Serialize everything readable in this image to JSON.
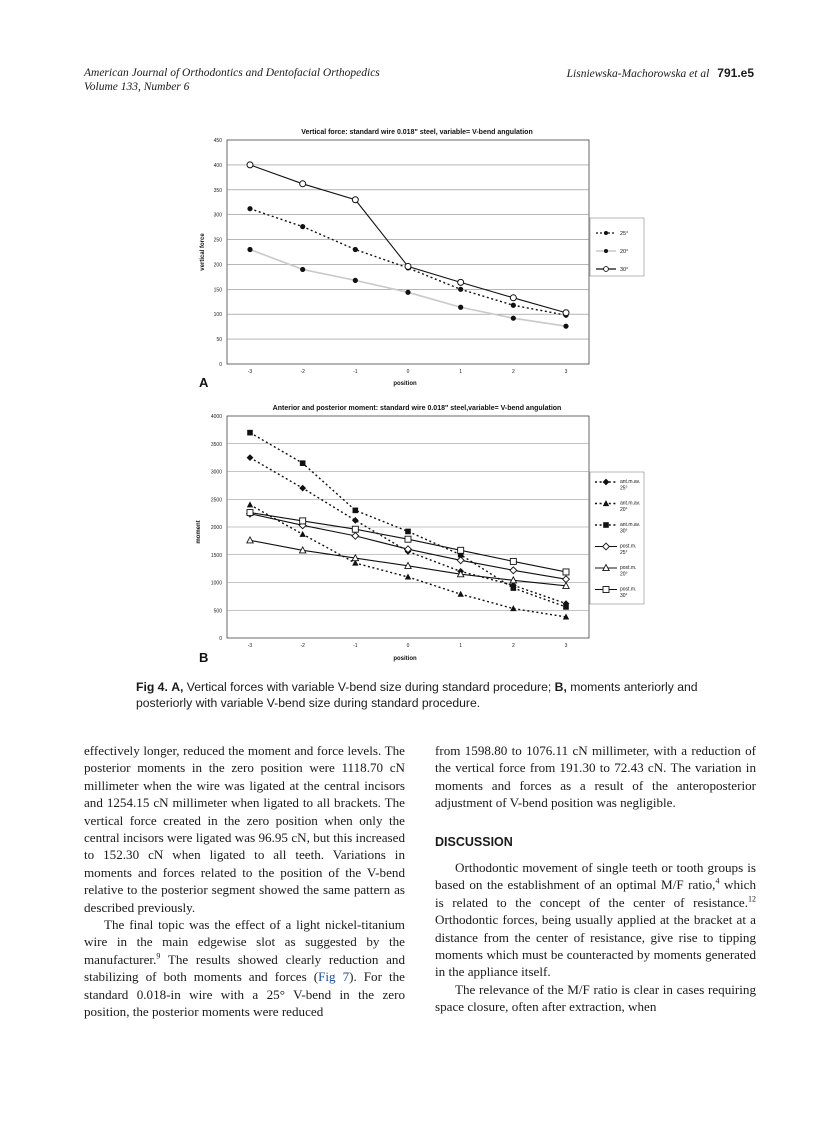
{
  "header": {
    "journal_line1": "American Journal of Orthodontics and Dentofacial Orthopedics",
    "journal_line2": "Volume 133, Number 6",
    "authors": "Lisniewska-Machorowska et al",
    "page_number": "791.e5"
  },
  "chart_data": [
    {
      "type": "line",
      "panel_label": "A",
      "title": "Vertical force: standard wire 0.018\" steel, variable= V-bend angulation",
      "xlabel": "position",
      "ylabel": "vertical force",
      "x": [
        -3,
        -2,
        -1,
        0,
        1,
        2,
        3
      ],
      "ylim": [
        0,
        450
      ],
      "yticks": [
        0,
        50,
        100,
        150,
        200,
        250,
        300,
        350,
        400,
        450
      ],
      "series": [
        {
          "name": "25°",
          "style": "dotted",
          "marker": "dot",
          "values": [
            312,
            276,
            230,
            193,
            150,
            118,
            98
          ]
        },
        {
          "name": "20°",
          "style": "light",
          "marker": "dot",
          "values": [
            230,
            190,
            168,
            144,
            114,
            92,
            76
          ]
        },
        {
          "name": "30°",
          "style": "solid",
          "marker": "circle",
          "values": [
            400,
            362,
            330,
            196,
            164,
            133,
            103
          ]
        }
      ]
    },
    {
      "type": "line",
      "panel_label": "B",
      "title": "Anterior and posterior moment: standard wire 0.018\" steel,variable= V-bend angulation",
      "xlabel": "position",
      "ylabel": "moment",
      "x": [
        -3,
        -2,
        -1,
        0,
        1,
        2,
        3
      ],
      "ylim": [
        0,
        4000
      ],
      "yticks": [
        0,
        500,
        1000,
        1500,
        2000,
        2500,
        3000,
        3500,
        4000
      ],
      "series": [
        {
          "name": "ant.m.av. 25°",
          "style": "dotted",
          "marker": "diamond",
          "values": [
            3250,
            2700,
            2120,
            1560,
            1200,
            950,
            620
          ]
        },
        {
          "name": "ant.m.av. 20°",
          "style": "dotted",
          "marker": "triangle",
          "values": [
            2400,
            1870,
            1350,
            1100,
            790,
            530,
            380
          ]
        },
        {
          "name": "ant.m.av. 30°",
          "style": "dotted",
          "marker": "square",
          "values": [
            3700,
            3150,
            2300,
            1920,
            1500,
            900,
            560
          ]
        },
        {
          "name": "post.m. 25°",
          "style": "solid",
          "marker": "open-diamond",
          "values": [
            2240,
            2030,
            1840,
            1600,
            1400,
            1220,
            1060
          ]
        },
        {
          "name": "post.m. 20°",
          "style": "solid",
          "marker": "open-triangle",
          "values": [
            1760,
            1580,
            1440,
            1300,
            1150,
            1040,
            940
          ]
        },
        {
          "name": "post.m. 30°",
          "style": "solid",
          "marker": "open-square",
          "values": [
            2260,
            2110,
            1960,
            1780,
            1580,
            1380,
            1190
          ]
        }
      ]
    }
  ],
  "legend_a": [
    "25°",
    "20°",
    "30°"
  ],
  "legend_b": [
    [
      "ant.m.av.",
      "25°"
    ],
    [
      "ant.m.av.",
      "20°"
    ],
    [
      "ant.m.av.",
      "30°"
    ],
    [
      "post.m.",
      "25°"
    ],
    [
      "post.m.",
      "20°"
    ],
    [
      "post.m.",
      "30°"
    ]
  ],
  "caption": {
    "label": "Fig 4.",
    "a_label": "A,",
    "a_text": " Vertical forces with variable V-bend size during standard procedure; ",
    "b_label": "B,",
    "b_text": " moments anteriorly and posteriorly with variable V-bend size during standard procedure."
  },
  "body": {
    "left_p1": "effectively longer, reduced the moment and force levels. The posterior moments in the zero position were 1118.70 cN millimeter when the wire was ligated at the central incisors and 1254.15 cN millimeter when ligated to all brackets. The vertical force created in the zero position when only the central incisors were ligated was 96.95 cN, but this increased to 152.30 cN when ligated to all teeth. Variations in moments and forces related to the position of the V-bend relative to the posterior segment showed the same pattern as described previously.",
    "left_p2_a": "The final topic was the effect of a light nickel-titanium wire in the main edgewise slot as suggested by the manufacturer.",
    "left_p2_ref": "9",
    "left_p2_b": " The results showed clearly reduction and stabilizing of both moments and forces (",
    "left_p2_fig": "Fig 7",
    "left_p2_c": "). For the standard 0.018-in wire with a 25° V-bend in the zero position, the posterior moments were reduced",
    "right_p1": "from 1598.80 to 1076.11 cN millimeter, with a reduction of the vertical force from 191.30 to 72.43 cN. The variation in moments and forces as a result of the anteroposterior adjustment of V-bend position was negligible.",
    "heading": "DISCUSSION",
    "right_p2_a": "Orthodontic movement of single teeth or tooth groups is based on the establishment of an optimal M/F ratio,",
    "right_p2_ref1": "4",
    "right_p2_b": " which is related to the concept of the center of resistance.",
    "right_p2_ref2": "12",
    "right_p2_c": " Orthodontic forces, being usually applied at the bracket at a distance from the center of resistance, give rise to tipping moments which must be counteracted by moments generated in the appliance itself.",
    "right_p3": "The relevance of the M/F ratio is clear in cases requiring space closure, often after extraction, when"
  }
}
